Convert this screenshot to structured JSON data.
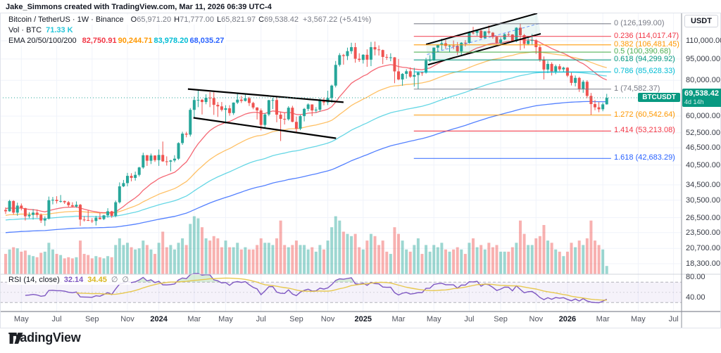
{
  "attribution": "Jake_Simmons created with TradingView.com, Mar 11, 2026 06:39 UTC-4",
  "legend": {
    "symbol": "Bitcoin / TetherUS · 1W · Binance",
    "ohlc": [
      {
        "k": "O",
        "v": "65,971.20"
      },
      {
        "k": "H",
        "v": "71,777.00"
      },
      {
        "k": "L",
        "v": "65,821.97"
      },
      {
        "k": "C",
        "v": "69,538.42"
      }
    ],
    "change": "+3,567.22 (+5.41%)",
    "vol_label": "Vol · BTC",
    "vol_value": "71.33 K",
    "vol_value_color": "#26c6da",
    "ema_label": "EMA 20/50/100/200",
    "ema_values": [
      {
        "v": "82,750.91",
        "color": "#f23645"
      },
      {
        "v": "90,244.71",
        "color": "#ff9800"
      },
      {
        "v": "83,978.20",
        "color": "#00bcd4"
      },
      {
        "v": "68,035.27",
        "color": "#2962ff"
      }
    ]
  },
  "price_axis": {
    "currency": "USDT",
    "ticks": [
      {
        "label": "110,000.00",
        "v": 110
      },
      {
        "label": "95,000.00",
        "v": 95
      },
      {
        "label": "80,000.00",
        "v": 80
      },
      {
        "label": "60,000.00",
        "v": 60
      },
      {
        "label": "52,500.00",
        "v": 52.5
      },
      {
        "label": "46,500.00",
        "v": 46.5
      },
      {
        "label": "40,500.00",
        "v": 40.5
      },
      {
        "label": "34,500.00",
        "v": 34.5
      },
      {
        "label": "30,500.00",
        "v": 30.5
      },
      {
        "label": "26,500.00",
        "v": 26.5
      },
      {
        "label": "23,500.00",
        "v": 23.5
      },
      {
        "label": "20,700.00",
        "v": 20.7
      },
      {
        "label": "18,300.00",
        "v": 18.3
      }
    ]
  },
  "price_tag": {
    "pill": "BTCUSDT",
    "price": "69,538.42",
    "countdown": "4d 14h",
    "bg": "#089981"
  },
  "rsi_pane": {
    "title": "RSI (14, close)",
    "value": "32.14",
    "value_color": "#7e57c2",
    "ma_value": "34.45",
    "ma_color": "#d9b71e",
    "empty1": "∅",
    "empty2": "∅",
    "ticks": [
      {
        "label": "80.00",
        "v": 80
      },
      {
        "label": "40.00",
        "v": 40
      }
    ]
  },
  "time_axis": [
    {
      "label": "May",
      "i": 4
    },
    {
      "label": "Jul",
      "i": 13
    },
    {
      "label": "Sep",
      "i": 22
    },
    {
      "label": "Nov",
      "i": 31
    },
    {
      "label": "2024",
      "i": 39,
      "bold": true
    },
    {
      "label": "Mar",
      "i": 48
    },
    {
      "label": "May",
      "i": 56
    },
    {
      "label": "Jul",
      "i": 65
    },
    {
      "label": "Sep",
      "i": 74
    },
    {
      "label": "Nov",
      "i": 82
    },
    {
      "label": "2025",
      "i": 91,
      "bold": true
    },
    {
      "label": "Mar",
      "i": 100
    },
    {
      "label": "May",
      "i": 109
    },
    {
      "label": "Jul",
      "i": 118
    },
    {
      "label": "Sep",
      "i": 126
    },
    {
      "label": "Nov",
      "i": 135
    },
    {
      "label": "2026",
      "i": 143,
      "bold": true
    },
    {
      "label": "Mar",
      "i": 152
    },
    {
      "label": "May",
      "i": 161
    },
    {
      "label": "Jul",
      "i": 170
    }
  ],
  "logo_text": "TradingView",
  "colors": {
    "up": "#26a69a",
    "down": "#ef5350",
    "vol_up": "rgba(38,166,154,0.45)",
    "vol_down": "rgba(239,83,80,0.45)",
    "ema20": "#f23645",
    "ema50": "#ff9800",
    "ema100": "#00bcd4",
    "ema200": "#2962ff",
    "grid": "#f0f3fa",
    "rsi_line": "#7e57c2",
    "rsi_ma": "#e5c33c",
    "rsi_band_fill": "rgba(126,87,194,0.08)",
    "current_price_line": "#26a69a",
    "tag_bg": "#089981"
  },
  "chart_data": {
    "type": "candlestick",
    "symbol": "BTCUSDT",
    "exchange": "Binance",
    "timeframe": "1W",
    "y_scale": "log",
    "units": "thousand USDT",
    "title": "Bitcoin / TetherUS · 1W · Binance",
    "last_price": 69.53842,
    "candles": [
      [
        28.2,
        28.8,
        27.3,
        27.9,
        180
      ],
      [
        27.9,
        30.6,
        27.8,
        30.3,
        220
      ],
      [
        30.3,
        30.5,
        27.2,
        27.6,
        240
      ],
      [
        27.6,
        29.9,
        26.9,
        29.2,
        230
      ],
      [
        29.2,
        29.7,
        28.1,
        28.6,
        200
      ],
      [
        28.6,
        28.7,
        25.9,
        26.8,
        210
      ],
      [
        26.8,
        27.7,
        26.4,
        27.1,
        170
      ],
      [
        27.1,
        28.4,
        26.1,
        27.6,
        160
      ],
      [
        27.6,
        28.3,
        26.5,
        27.1,
        150
      ],
      [
        27.1,
        27.4,
        25.4,
        25.9,
        190
      ],
      [
        25.9,
        26.8,
        24.8,
        26.3,
        200
      ],
      [
        26.3,
        31.4,
        26.1,
        30.5,
        280
      ],
      [
        30.5,
        31.3,
        29.5,
        30.6,
        220
      ],
      [
        30.6,
        31.5,
        29.7,
        30.3,
        180
      ],
      [
        30.3,
        31.8,
        29.9,
        30.3,
        170
      ],
      [
        30.3,
        30.4,
        29.6,
        30.0,
        140
      ],
      [
        30.0,
        30.3,
        28.9,
        29.3,
        150
      ],
      [
        29.3,
        30.0,
        28.8,
        29.0,
        140
      ],
      [
        29.0,
        30.2,
        28.7,
        29.4,
        150
      ],
      [
        29.4,
        29.6,
        24.8,
        26.1,
        300
      ],
      [
        26.1,
        26.8,
        25.7,
        26.0,
        180
      ],
      [
        26.0,
        28.1,
        25.8,
        25.9,
        170
      ],
      [
        25.9,
        26.4,
        25.4,
        25.8,
        140
      ],
      [
        25.8,
        26.9,
        24.9,
        26.5,
        160
      ],
      [
        26.5,
        27.5,
        26.1,
        26.2,
        150
      ],
      [
        26.2,
        27.1,
        26.0,
        27.0,
        140
      ],
      [
        27.0,
        28.6,
        26.5,
        27.9,
        160
      ],
      [
        27.9,
        28.0,
        26.5,
        26.9,
        150
      ],
      [
        26.9,
        30.4,
        26.6,
        30.0,
        260
      ],
      [
        30.0,
        35.2,
        29.7,
        34.1,
        320
      ],
      [
        34.1,
        35.9,
        33.9,
        35.0,
        260
      ],
      [
        35.0,
        38.0,
        34.1,
        37.1,
        280
      ],
      [
        37.1,
        37.9,
        35.5,
        36.5,
        240
      ],
      [
        36.5,
        38.4,
        35.7,
        37.4,
        220
      ],
      [
        37.4,
        39.9,
        36.9,
        39.7,
        230
      ],
      [
        39.7,
        44.7,
        39.3,
        43.8,
        300
      ],
      [
        43.8,
        43.9,
        40.2,
        41.9,
        260
      ],
      [
        41.9,
        44.4,
        40.8,
        43.7,
        220
      ],
      [
        43.7,
        43.8,
        41.5,
        42.1,
        180
      ],
      [
        42.1,
        45.9,
        40.2,
        43.9,
        280
      ],
      [
        43.9,
        48.9,
        41.5,
        41.7,
        380
      ],
      [
        41.7,
        43.4,
        40.3,
        41.6,
        240
      ],
      [
        41.6,
        42.2,
        38.5,
        42.0,
        260
      ],
      [
        42.0,
        43.8,
        41.4,
        42.6,
        220
      ],
      [
        42.6,
        48.6,
        42.2,
        48.3,
        280
      ],
      [
        48.3,
        52.9,
        47.6,
        52.1,
        320
      ],
      [
        52.1,
        52.9,
        50.6,
        51.7,
        260
      ],
      [
        51.7,
        64.0,
        50.9,
        63.1,
        450
      ],
      [
        63.1,
        70.2,
        59.0,
        68.3,
        520
      ],
      [
        68.3,
        73.8,
        64.5,
        68.4,
        500
      ],
      [
        68.4,
        68.9,
        60.8,
        67.2,
        420
      ],
      [
        67.2,
        71.5,
        66.0,
        69.6,
        320
      ],
      [
        69.6,
        72.8,
        64.5,
        69.4,
        300
      ],
      [
        69.4,
        72.7,
        60.6,
        65.7,
        340
      ],
      [
        65.7,
        67.2,
        59.6,
        64.9,
        320
      ],
      [
        64.9,
        67.2,
        62.3,
        63.1,
        240
      ],
      [
        63.1,
        65.5,
        56.5,
        63.9,
        300
      ],
      [
        63.9,
        65.5,
        60.2,
        61.5,
        240
      ],
      [
        61.5,
        67.0,
        60.6,
        66.9,
        240
      ],
      [
        66.9,
        71.9,
        66.1,
        68.5,
        280
      ],
      [
        68.5,
        70.6,
        66.7,
        67.8,
        220
      ],
      [
        67.8,
        71.9,
        67.5,
        69.3,
        240
      ],
      [
        69.3,
        70.1,
        65.1,
        66.7,
        220
      ],
      [
        66.7,
        67.3,
        63.4,
        64.3,
        220
      ],
      [
        64.3,
        64.5,
        58.4,
        62.8,
        260
      ],
      [
        62.8,
        63.8,
        53.5,
        55.9,
        320
      ],
      [
        55.9,
        61.4,
        54.3,
        60.8,
        280
      ],
      [
        60.8,
        68.4,
        60.0,
        68.2,
        280
      ],
      [
        68.2,
        69.6,
        63.5,
        68.3,
        260
      ],
      [
        68.3,
        70.0,
        57.1,
        60.7,
        320
      ],
      [
        60.7,
        62.2,
        49.1,
        58.7,
        480
      ],
      [
        58.7,
        61.8,
        56.1,
        58.5,
        260
      ],
      [
        58.5,
        65.0,
        57.9,
        64.2,
        240
      ],
      [
        64.2,
        65.2,
        57.1,
        57.3,
        260
      ],
      [
        57.3,
        59.8,
        52.5,
        54.2,
        300
      ],
      [
        54.2,
        60.6,
        53.6,
        60.0,
        260
      ],
      [
        60.0,
        64.1,
        57.5,
        63.6,
        260
      ],
      [
        63.6,
        66.5,
        62.5,
        65.9,
        220
      ],
      [
        65.9,
        66.0,
        60.0,
        62.8,
        240
      ],
      [
        62.8,
        64.5,
        61.7,
        63.2,
        200
      ],
      [
        63.2,
        69.4,
        62.1,
        68.4,
        260
      ],
      [
        68.4,
        69.6,
        65.5,
        67.0,
        220
      ],
      [
        67.0,
        73.6,
        65.6,
        69.4,
        300
      ],
      [
        69.4,
        77.3,
        66.8,
        76.7,
        420
      ],
      [
        76.7,
        93.5,
        75.6,
        90.6,
        520
      ],
      [
        90.6,
        99.6,
        89.4,
        98.0,
        480
      ],
      [
        98.0,
        99.0,
        90.8,
        97.3,
        380
      ],
      [
        97.3,
        104.1,
        94.2,
        101.2,
        360
      ],
      [
        101.2,
        108.3,
        99.0,
        104.5,
        340
      ],
      [
        104.5,
        108.2,
        92.2,
        95.2,
        360
      ],
      [
        95.2,
        99.5,
        92.8,
        94.3,
        240
      ],
      [
        94.3,
        98.8,
        91.6,
        98.3,
        220
      ],
      [
        98.3,
        102.7,
        89.2,
        94.5,
        300
      ],
      [
        94.5,
        109.0,
        89.7,
        104.5,
        360
      ],
      [
        104.5,
        109.3,
        97.8,
        102.6,
        340
      ],
      [
        102.6,
        106.0,
        97.7,
        102.1,
        260
      ],
      [
        102.1,
        102.5,
        91.2,
        96.6,
        300
      ],
      [
        96.6,
        98.8,
        94.3,
        96.1,
        200
      ],
      [
        96.1,
        99.5,
        93.3,
        96.3,
        180
      ],
      [
        96.3,
        96.5,
        78.2,
        86.0,
        420
      ],
      [
        86.0,
        95.0,
        80.0,
        80.6,
        360
      ],
      [
        80.6,
        84.8,
        76.6,
        84.3,
        300
      ],
      [
        84.3,
        87.5,
        81.1,
        86.1,
        220
      ],
      [
        86.1,
        88.8,
        81.6,
        82.4,
        200
      ],
      [
        82.4,
        88.5,
        76.1,
        83.5,
        260
      ],
      [
        83.5,
        86.0,
        74.5,
        85.2,
        320
      ],
      [
        85.2,
        85.8,
        83.0,
        85.1,
        180
      ],
      [
        85.1,
        95.9,
        84.5,
        93.8,
        260
      ],
      [
        93.8,
        97.9,
        92.9,
        94.3,
        200
      ],
      [
        94.3,
        104.3,
        93.6,
        104.1,
        260
      ],
      [
        104.1,
        106.8,
        100.7,
        106.5,
        240
      ],
      [
        106.5,
        111.9,
        102.1,
        107.8,
        280
      ],
      [
        107.8,
        110.8,
        103.1,
        105.6,
        220
      ],
      [
        105.6,
        106.8,
        100.4,
        105.7,
        200
      ],
      [
        105.7,
        110.3,
        102.7,
        105.5,
        220
      ],
      [
        105.5,
        108.9,
        98.2,
        101.0,
        240
      ],
      [
        101.0,
        108.8,
        98.3,
        108.3,
        220
      ],
      [
        108.3,
        110.6,
        105.1,
        108.2,
        180
      ],
      [
        108.2,
        118.9,
        107.5,
        117.5,
        280
      ],
      [
        117.5,
        123.1,
        115.7,
        117.3,
        320
      ],
      [
        117.3,
        120.2,
        114.5,
        119.4,
        240
      ],
      [
        119.4,
        120.1,
        111.9,
        112.6,
        260
      ],
      [
        112.6,
        118.8,
        111.6,
        118.7,
        220
      ],
      [
        118.7,
        124.5,
        115.7,
        117.4,
        280
      ],
      [
        117.4,
        118.0,
        111.8,
        113.5,
        240
      ],
      [
        113.5,
        113.8,
        107.3,
        108.2,
        260
      ],
      [
        108.2,
        113.0,
        107.4,
        111.2,
        200
      ],
      [
        111.2,
        116.5,
        110.7,
        115.9,
        200
      ],
      [
        115.9,
        117.9,
        114.2,
        115.7,
        200
      ],
      [
        115.7,
        116.0,
        108.7,
        109.6,
        240
      ],
      [
        109.6,
        122.6,
        108.8,
        122.2,
        280
      ],
      [
        122.2,
        126.2,
        102.0,
        115.1,
        480
      ],
      [
        115.1,
        116.1,
        103.5,
        107.2,
        360
      ],
      [
        107.2,
        113.4,
        106.1,
        110.1,
        260
      ],
      [
        110.1,
        116.2,
        106.6,
        110.5,
        260
      ],
      [
        110.5,
        111.5,
        98.9,
        104.5,
        320
      ],
      [
        104.5,
        106.5,
        92.9,
        94.6,
        340
      ],
      [
        94.6,
        97.0,
        80.6,
        87.3,
        440
      ],
      [
        87.3,
        93.6,
        84.8,
        91.3,
        300
      ],
      [
        91.3,
        92.5,
        83.2,
        86.0,
        280
      ],
      [
        86.0,
        90.8,
        84.1,
        89.6,
        220
      ],
      [
        89.6,
        91.2,
        86.1,
        87.4,
        200
      ],
      [
        87.4,
        89.3,
        85.6,
        88.6,
        160
      ],
      [
        88.6,
        89.0,
        82.1,
        83.1,
        200
      ],
      [
        83.1,
        85.2,
        76.8,
        78.4,
        280
      ],
      [
        78.4,
        83.2,
        76.2,
        81.6,
        240
      ],
      [
        81.6,
        82.3,
        72.9,
        74.6,
        300
      ],
      [
        74.6,
        80.2,
        72.4,
        79.1,
        260
      ],
      [
        79.1,
        80.1,
        69.3,
        70.6,
        320
      ],
      [
        70.6,
        72.3,
        60.5,
        66.1,
        480
      ],
      [
        66.1,
        68.3,
        62.9,
        64.4,
        300
      ],
      [
        64.4,
        67.2,
        61.9,
        63.4,
        260
      ],
      [
        63.4,
        66.9,
        62.4,
        65.97,
        220
      ],
      [
        65.971,
        71.777,
        65.822,
        69.538,
        71.33
      ]
    ],
    "indicators": {
      "ema_periods": [
        20,
        50,
        100,
        200
      ],
      "rsi_period": 14,
      "rsi_bands": [
        70,
        50,
        30
      ]
    },
    "drawings": {
      "channel_down_2024": {
        "color": "#000000",
        "upper": [
          [
            46.4,
            74.6
          ],
          [
            86.0,
            67.1
          ]
        ],
        "lower": [
          [
            47.8,
            59.2
          ],
          [
            84.1,
            50.2
          ]
        ]
      },
      "channel_up_2025": {
        "color": "#000000",
        "fill": "rgba(8,153,129,0.08)",
        "median_color": "#2962ff",
        "upper": [
          [
            107.0,
            106.9
          ],
          [
            135.3,
            137.2
          ]
        ],
        "lower": [
          [
            107.5,
            90.7
          ],
          [
            136.2,
            116.4
          ]
        ]
      },
      "fib_retracement": {
        "i_start": 103.9,
        "i_end": 154.1,
        "levels": [
          {
            "level": "0",
            "label": "0 (126,199.00)",
            "v": 126.199,
            "color": "#787b86"
          },
          {
            "level": "0.236",
            "label": "0.236 (114,017.47)",
            "v": 114.01747,
            "color": "#f23645"
          },
          {
            "level": "0.382",
            "label": "0.382 (106,481.45)",
            "v": 106.48145,
            "color": "#ff9800"
          },
          {
            "level": "0.5",
            "label": "0.5 (100,390.68)",
            "v": 100.39068,
            "color": "#4caf50"
          },
          {
            "level": "0.618",
            "label": "0.618 (94,299.92)",
            "v": 94.29992,
            "color": "#089981"
          },
          {
            "level": "0.786",
            "label": "0.786 (85,628.33)",
            "v": 85.62833,
            "color": "#00bcd4"
          },
          {
            "level": "1",
            "label": "1 (74,582.37)",
            "v": 74.58237,
            "color": "#787b86"
          },
          {
            "level": "1.272",
            "label": "1.272 (60,542.64)",
            "v": 60.54264,
            "color": "#ff9800"
          },
          {
            "level": "1.414",
            "label": "1.414 (53,213.08)",
            "v": 53.21308,
            "color": "#f23645"
          },
          {
            "level": "1.618",
            "label": "1.618 (42,683.29)",
            "v": 42.68329,
            "color": "#2962ff"
          }
        ]
      }
    }
  }
}
